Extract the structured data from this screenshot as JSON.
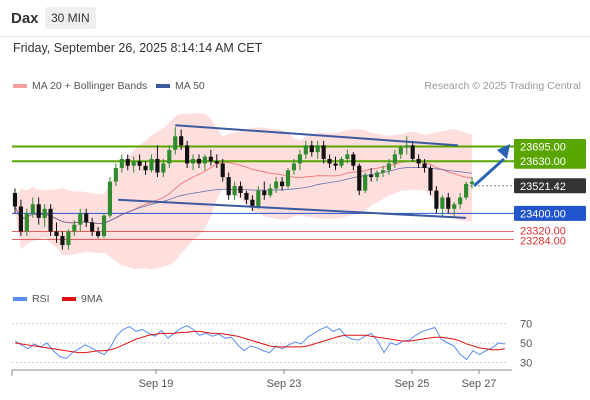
{
  "header": {
    "symbol": "Dax",
    "timeframe": "30 MIN"
  },
  "datetime": "Friday, September 26, 2025 8:14:14 AM CET",
  "legend": {
    "ma20_label": "MA 20 + Bollinger Bands",
    "ma50_label": "MA 50",
    "credit": "Research © 2025 Trading Central",
    "rsi_label": "RSI",
    "rsi_ma_label": "9MA"
  },
  "colors": {
    "up": "#2e8b2e",
    "down": "#111111",
    "ma20": "#f08080",
    "bands": "#ffd6d6",
    "ma50": "#3b5aa0",
    "resistance": "#59a600",
    "support": "#2255cc",
    "sub_level": "#dd3333",
    "rsi": "#5b8def",
    "rsi_ma": "#dd1111"
  },
  "chart_data": [
    {
      "type": "candlestick",
      "yrange": [
        23150,
        23900
      ],
      "x_ticks": [
        "Sep 19",
        "Sep 23",
        "Sep 25",
        "Sep 27"
      ],
      "last_price": 23521.42,
      "levels": [
        {
          "value": 23695.0,
          "label": "23695.00",
          "kind": "resistance"
        },
        {
          "value": 23630.0,
          "label": "23630.00",
          "kind": "resistance"
        },
        {
          "value": 23521.42,
          "label": "23521.42",
          "kind": "last"
        },
        {
          "value": 23400.0,
          "label": "23400.00",
          "kind": "support"
        },
        {
          "value": 23320.0,
          "label": "23320.00",
          "kind": "sub"
        },
        {
          "value": 23284.0,
          "label": "23284.00",
          "kind": "sub"
        }
      ],
      "series": [
        {
          "name": "MA 20 + Bollinger Bands"
        },
        {
          "name": "MA 50"
        }
      ],
      "ohlc": [
        [
          23490,
          23510,
          23400,
          23430
        ],
        [
          23430,
          23460,
          23300,
          23320
        ],
        [
          23320,
          23420,
          23300,
          23400
        ],
        [
          23400,
          23470,
          23380,
          23440
        ],
        [
          23440,
          23470,
          23350,
          23380
        ],
        [
          23380,
          23440,
          23340,
          23420
        ],
        [
          23420,
          23440,
          23300,
          23320
        ],
        [
          23320,
          23360,
          23270,
          23300
        ],
        [
          23300,
          23320,
          23240,
          23260
        ],
        [
          23260,
          23330,
          23240,
          23320
        ],
        [
          23320,
          23370,
          23300,
          23350
        ],
        [
          23350,
          23420,
          23320,
          23400
        ],
        [
          23400,
          23420,
          23340,
          23360
        ],
        [
          23360,
          23380,
          23300,
          23320
        ],
        [
          23320,
          23340,
          23290,
          23300
        ],
        [
          23300,
          23400,
          23290,
          23390
        ],
        [
          23390,
          23560,
          23380,
          23540
        ],
        [
          23540,
          23620,
          23520,
          23600
        ],
        [
          23600,
          23660,
          23580,
          23640
        ],
        [
          23640,
          23660,
          23590,
          23610
        ],
        [
          23610,
          23650,
          23580,
          23630
        ],
        [
          23630,
          23660,
          23590,
          23610
        ],
        [
          23610,
          23630,
          23570,
          23590
        ],
        [
          23590,
          23660,
          23580,
          23640
        ],
        [
          23640,
          23700,
          23560,
          23580
        ],
        [
          23580,
          23640,
          23560,
          23620
        ],
        [
          23620,
          23700,
          23600,
          23680
        ],
        [
          23680,
          23780,
          23660,
          23740
        ],
        [
          23740,
          23770,
          23680,
          23700
        ],
        [
          23700,
          23720,
          23600,
          23620
        ],
        [
          23620,
          23660,
          23590,
          23640
        ],
        [
          23640,
          23660,
          23600,
          23620
        ],
        [
          23620,
          23660,
          23590,
          23650
        ],
        [
          23650,
          23680,
          23610,
          23630
        ],
        [
          23630,
          23660,
          23600,
          23620
        ],
        [
          23620,
          23640,
          23540,
          23560
        ],
        [
          23560,
          23580,
          23460,
          23480
        ],
        [
          23480,
          23540,
          23460,
          23520
        ],
        [
          23520,
          23540,
          23470,
          23490
        ],
        [
          23490,
          23500,
          23440,
          23460
        ],
        [
          23460,
          23480,
          23410,
          23430
        ],
        [
          23430,
          23520,
          23420,
          23500
        ],
        [
          23500,
          23540,
          23460,
          23480
        ],
        [
          23480,
          23530,
          23470,
          23510
        ],
        [
          23510,
          23560,
          23490,
          23540
        ],
        [
          23540,
          23560,
          23500,
          23520
        ],
        [
          23520,
          23600,
          23510,
          23590
        ],
        [
          23590,
          23640,
          23570,
          23620
        ],
        [
          23620,
          23680,
          23590,
          23660
        ],
        [
          23660,
          23720,
          23640,
          23700
        ],
        [
          23700,
          23720,
          23650,
          23670
        ],
        [
          23670,
          23720,
          23640,
          23700
        ],
        [
          23700,
          23720,
          23620,
          23640
        ],
        [
          23640,
          23660,
          23600,
          23620
        ],
        [
          23620,
          23650,
          23590,
          23610
        ],
        [
          23610,
          23650,
          23600,
          23640
        ],
        [
          23640,
          23680,
          23620,
          23660
        ],
        [
          23660,
          23670,
          23590,
          23610
        ],
        [
          23610,
          23620,
          23480,
          23500
        ],
        [
          23500,
          23580,
          23490,
          23570
        ],
        [
          23570,
          23600,
          23540,
          23560
        ],
        [
          23560,
          23590,
          23540,
          23580
        ],
        [
          23580,
          23610,
          23560,
          23590
        ],
        [
          23590,
          23640,
          23570,
          23620
        ],
        [
          23620,
          23680,
          23600,
          23660
        ],
        [
          23660,
          23700,
          23640,
          23690
        ],
        [
          23690,
          23740,
          23660,
          23700
        ],
        [
          23700,
          23720,
          23630,
          23640
        ],
        [
          23640,
          23660,
          23600,
          23620
        ],
        [
          23620,
          23640,
          23580,
          23600
        ],
        [
          23600,
          23610,
          23480,
          23500
        ],
        [
          23500,
          23520,
          23400,
          23420
        ],
        [
          23420,
          23480,
          23380,
          23470
        ],
        [
          23470,
          23490,
          23400,
          23420
        ],
        [
          23420,
          23450,
          23380,
          23440
        ],
        [
          23440,
          23490,
          23420,
          23470
        ],
        [
          23470,
          23540,
          23460,
          23530
        ],
        [
          23530,
          23560,
          23510,
          23540
        ]
      ]
    },
    {
      "type": "line",
      "yrange": [
        20,
        80
      ],
      "y_ticks": [
        30,
        50,
        70
      ],
      "series": [
        {
          "name": "RSI",
          "values": [
            52,
            48,
            44,
            49,
            46,
            50,
            42,
            36,
            34,
            40,
            44,
            48,
            45,
            41,
            38,
            46,
            58,
            64,
            67,
            62,
            64,
            60,
            57,
            63,
            55,
            60,
            65,
            68,
            64,
            58,
            60,
            57,
            59,
            55,
            56,
            48,
            42,
            47,
            45,
            42,
            40,
            47,
            44,
            48,
            51,
            49,
            56,
            60,
            64,
            67,
            62,
            65,
            57,
            54,
            53,
            57,
            60,
            52,
            40,
            50,
            48,
            52,
            53,
            58,
            62,
            64,
            66,
            54,
            50,
            47,
            38,
            33,
            42,
            38,
            42,
            45,
            50,
            49
          ]
        },
        {
          "name": "9MA",
          "values": [
            50,
            49,
            48,
            47,
            46,
            45,
            44,
            43,
            42,
            41,
            40,
            40,
            41,
            42,
            42,
            43,
            45,
            48,
            51,
            54,
            56,
            58,
            59,
            60,
            60,
            60,
            61,
            61,
            62,
            62,
            61,
            60,
            60,
            59,
            58,
            57,
            55,
            53,
            51,
            49,
            47,
            46,
            46,
            46,
            46,
            46,
            47,
            49,
            51,
            53,
            55,
            57,
            58,
            58,
            58,
            58,
            57,
            56,
            55,
            54,
            53,
            52,
            52,
            53,
            54,
            55,
            56,
            56,
            55,
            54,
            52,
            49,
            47,
            45,
            44,
            43,
            43,
            44
          ]
        }
      ]
    }
  ]
}
